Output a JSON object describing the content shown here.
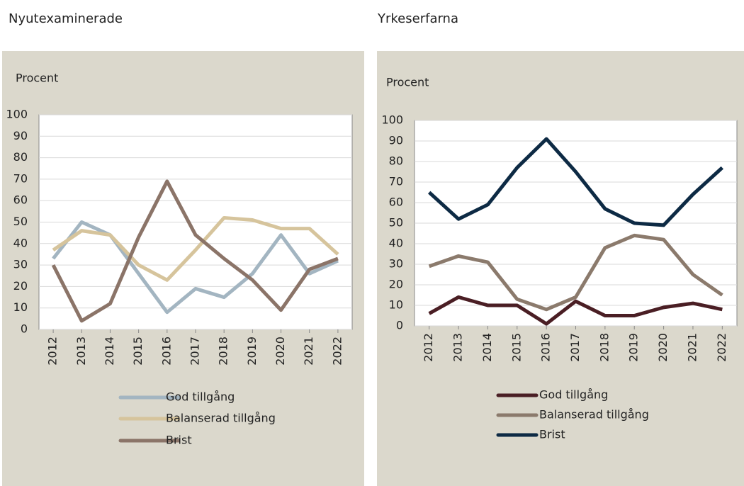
{
  "chart_data": [
    {
      "type": "line",
      "title": "Nyutexaminerade",
      "y_label": "Procent",
      "categories": [
        "2012",
        "2013",
        "2014",
        "2015",
        "2016",
        "2017",
        "2018",
        "2019",
        "2020",
        "2021",
        "2022"
      ],
      "series": [
        {
          "name": "God tillgång",
          "color": "#a3b5c1",
          "values": [
            33,
            50,
            44,
            26,
            8,
            19,
            15,
            26,
            44,
            26,
            32
          ]
        },
        {
          "name": "Balanserad tillgång",
          "color": "#d6c49c",
          "values": [
            37,
            46,
            44,
            30,
            23,
            37,
            52,
            51,
            47,
            47,
            35
          ]
        },
        {
          "name": "Brist",
          "color": "#8b7468",
          "values": [
            30,
            4,
            12,
            43,
            69,
            44,
            33,
            23,
            9,
            28,
            33
          ]
        }
      ],
      "ylim": [
        0,
        100
      ],
      "yticks": [
        0,
        10,
        20,
        30,
        40,
        50,
        60,
        70,
        80,
        90,
        100
      ],
      "grid": true
    },
    {
      "type": "line",
      "title": "Yrkeserfarna",
      "y_label": "Procent",
      "categories": [
        "2012",
        "2013",
        "2014",
        "2015",
        "2016",
        "2017",
        "2018",
        "2019",
        "2020",
        "2021",
        "2022"
      ],
      "series": [
        {
          "name": "God tillgång",
          "color": "#4a1e24",
          "values": [
            6,
            14,
            10,
            10,
            1,
            12,
            5,
            5,
            9,
            11,
            8
          ]
        },
        {
          "name": "Balanserad tillgång",
          "color": "#8b7a6c",
          "values": [
            29,
            34,
            31,
            13,
            8,
            14,
            38,
            44,
            42,
            25,
            15
          ]
        },
        {
          "name": "Brist",
          "color": "#0d2a44",
          "values": [
            65,
            52,
            59,
            77,
            91,
            75,
            57,
            50,
            49,
            64,
            77
          ]
        }
      ],
      "ylim": [
        0,
        100
      ],
      "yticks": [
        0,
        10,
        20,
        30,
        40,
        50,
        60,
        70,
        80,
        90,
        100
      ],
      "grid": true
    }
  ]
}
